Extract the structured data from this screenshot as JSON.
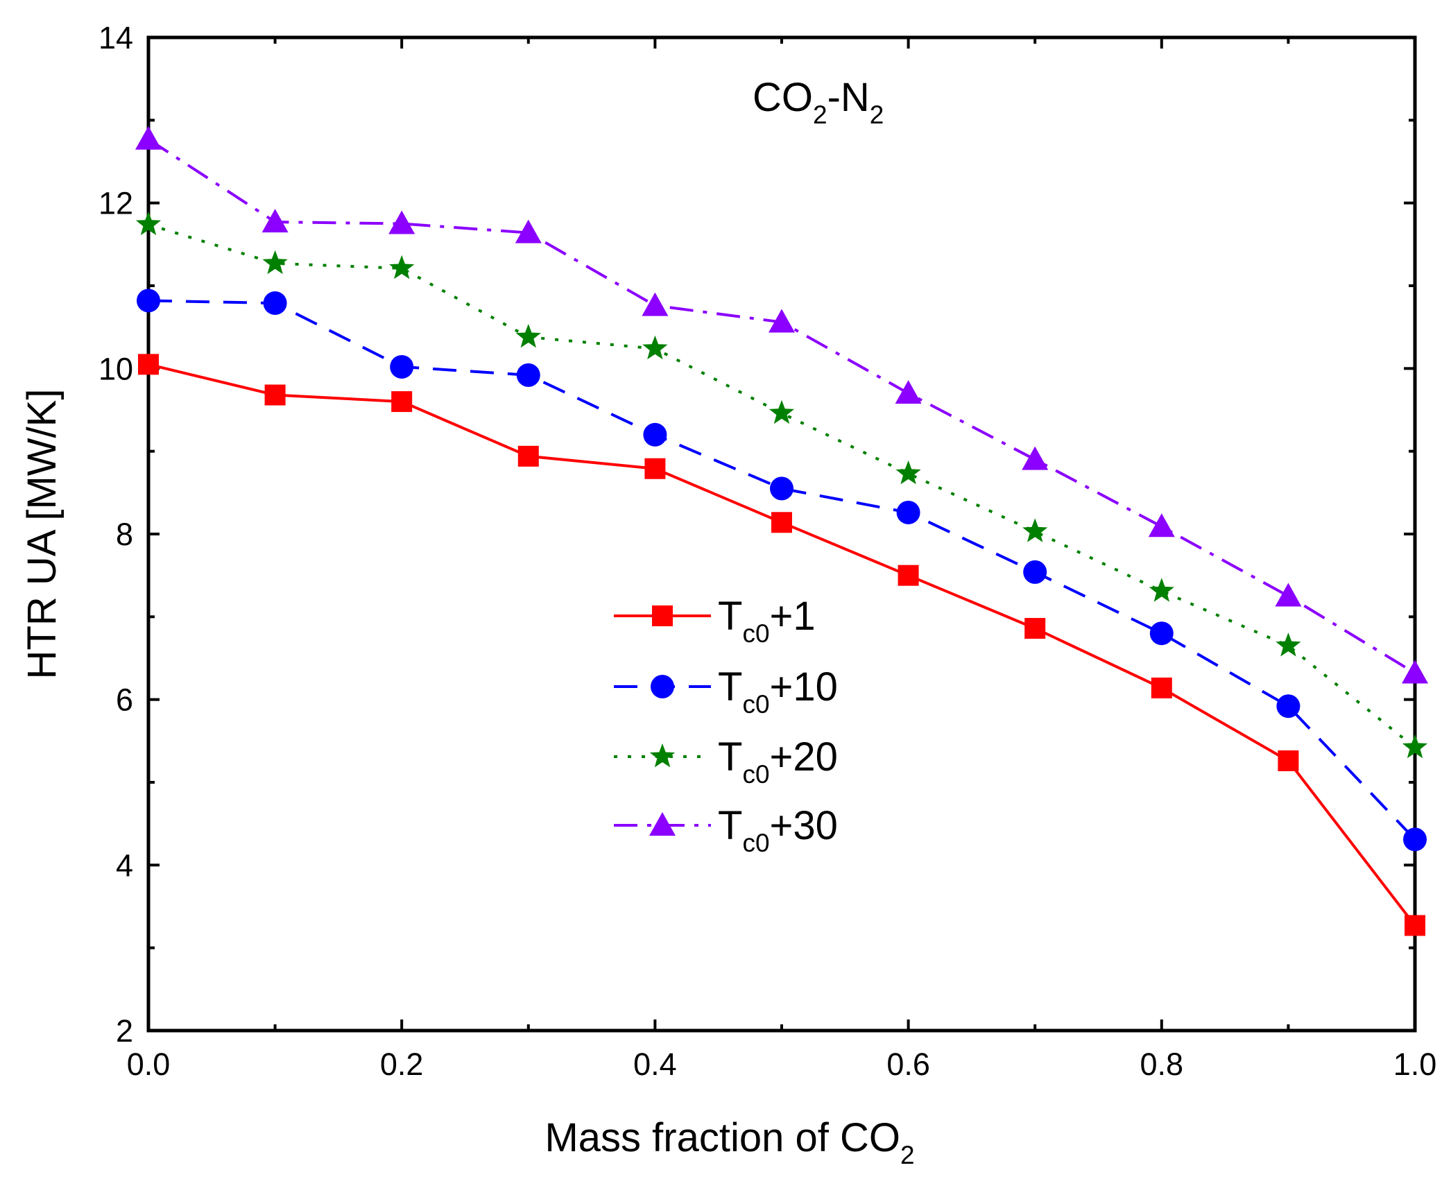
{
  "chart_data": {
    "type": "line",
    "title": "",
    "annotation": {
      "main": "CO",
      "sub1": "2",
      "mid": "-N",
      "sub2": "2"
    },
    "xlabel": {
      "main": "Mass fraction of CO",
      "sub": "2"
    },
    "ylabel": "HTR UA [MW/K]",
    "xlim": [
      0,
      1.0
    ],
    "ylim": [
      2,
      14
    ],
    "xticks": [
      0.0,
      0.2,
      0.4,
      0.6,
      0.8,
      1.0
    ],
    "xtick_labels": [
      "0.0",
      "0.2",
      "0.4",
      "0.6",
      "0.8",
      "1.0"
    ],
    "yticks": [
      2,
      4,
      6,
      8,
      10,
      12,
      14
    ],
    "ytick_labels": [
      "2",
      "4",
      "6",
      "8",
      "10",
      "12",
      "14"
    ],
    "grid": false,
    "legend_position": "center",
    "x": [
      0.0,
      0.1,
      0.2,
      0.3,
      0.4,
      0.5,
      0.6,
      0.7,
      0.8,
      0.9,
      1.0
    ],
    "series": [
      {
        "name": "Tc0+1",
        "label_main": "T",
        "label_sub": "c0",
        "label_rest": "+1",
        "color": "#ff0000",
        "marker": "square",
        "dash": "solid",
        "values": [
          10.05,
          9.68,
          9.6,
          8.94,
          8.79,
          8.14,
          7.5,
          6.86,
          6.14,
          5.26,
          3.27
        ]
      },
      {
        "name": "Tc0+10",
        "label_main": "T",
        "label_sub": "c0",
        "label_rest": "+10",
        "color": "#0000ff",
        "marker": "circle",
        "dash": "dash",
        "values": [
          10.82,
          10.79,
          10.02,
          9.92,
          9.2,
          8.55,
          8.26,
          7.54,
          6.8,
          5.92,
          4.31
        ]
      },
      {
        "name": "Tc0+20",
        "label_main": "T",
        "label_sub": "c0",
        "label_rest": "+20",
        "color": "#008000",
        "marker": "star",
        "dash": "dot",
        "values": [
          11.74,
          11.27,
          11.21,
          10.38,
          10.24,
          9.46,
          8.73,
          8.03,
          7.31,
          6.65,
          5.42
        ]
      },
      {
        "name": "Tc0+30",
        "label_main": "T",
        "label_sub": "c0",
        "label_rest": "+30",
        "color": "#8b00ff",
        "marker": "triangle",
        "dash": "dashdot",
        "values": [
          12.77,
          11.77,
          11.75,
          11.64,
          10.76,
          10.56,
          9.7,
          8.9,
          8.09,
          7.25,
          6.32
        ]
      }
    ]
  }
}
